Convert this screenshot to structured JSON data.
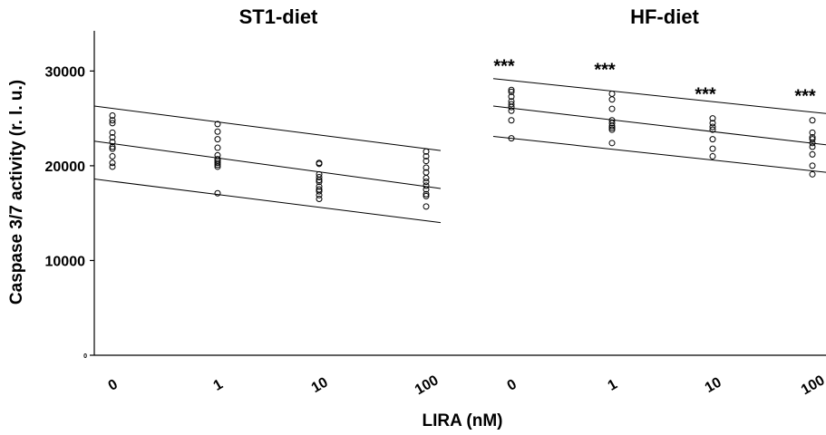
{
  "chart_data": {
    "type": "scatter",
    "ylabel": "Caspase 3/7 activity (r. l. u.)",
    "xlabel": "LIRA (nM)",
    "ylim": [
      0,
      33000
    ],
    "yticks": [
      0,
      10000,
      20000,
      30000
    ],
    "ytick_labels": [
      "0",
      "10000",
      "20000",
      "30000"
    ],
    "grid": false,
    "panels": [
      {
        "title": "ST1-diet",
        "categories": [
          "0",
          "1",
          "10",
          "100"
        ],
        "points": [
          [
            25300,
            24800,
            24500,
            23500,
            23000,
            22500,
            22000,
            21800,
            21000,
            20300,
            19900
          ],
          [
            24400,
            23600,
            22800,
            21900,
            21100,
            20700,
            20500,
            20300,
            20100,
            19900,
            17100
          ],
          [
            20300,
            20200,
            19100,
            18800,
            18500,
            18300,
            17800,
            17500,
            17300,
            16900,
            16500
          ],
          [
            21500,
            21000,
            20500,
            19800,
            19300,
            18700,
            18300,
            17900,
            17500,
            17000,
            16800,
            15700
          ]
        ],
        "lines": [
          {
            "start": 26300,
            "end": 21600
          },
          {
            "start": 22600,
            "end": 17600
          },
          {
            "start": 18600,
            "end": 14000
          }
        ],
        "significance": [
          "",
          "",
          "",
          ""
        ]
      },
      {
        "title": "HF-diet",
        "categories": [
          "0",
          "1",
          "10",
          "100"
        ],
        "points": [
          [
            28000,
            27800,
            27300,
            26800,
            26500,
            26200,
            25800,
            24800,
            22900
          ],
          [
            27600,
            27000,
            26000,
            24800,
            24500,
            24200,
            24000,
            23800,
            22400
          ],
          [
            25000,
            24500,
            24100,
            23800,
            22800,
            21800,
            21000
          ],
          [
            24800,
            23500,
            23000,
            22800,
            22400,
            22000,
            21200,
            20000,
            19100
          ]
        ],
        "lines": [
          {
            "start": 29200,
            "end": 25500
          },
          {
            "start": 26300,
            "end": 22200
          },
          {
            "start": 23100,
            "end": 19300
          }
        ],
        "significance": [
          "***",
          "***",
          "***",
          "***"
        ]
      }
    ]
  }
}
